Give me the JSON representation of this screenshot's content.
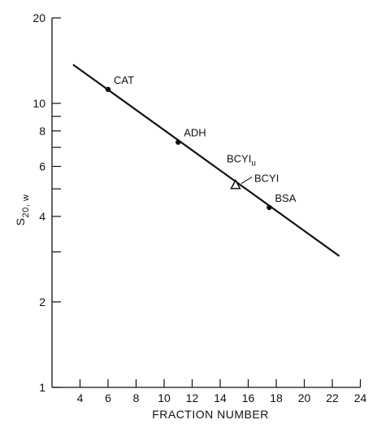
{
  "chart_data": {
    "type": "scatter",
    "xlabel": "FRACTION NUMBER",
    "ylabel": "S20, w",
    "ylabel_parts": {
      "main": "S",
      "sub": "20, w"
    },
    "yscale": "log",
    "xlim": [
      2,
      24
    ],
    "ylim": [
      1,
      20
    ],
    "x_ticks": [
      4,
      6,
      8,
      10,
      12,
      14,
      16,
      18,
      20,
      22,
      24
    ],
    "y_tick_labels": [
      1,
      2,
      4,
      6,
      8,
      10,
      20
    ],
    "y_minor_ticks": [
      3,
      5,
      7,
      9
    ],
    "grid": false,
    "points": [
      {
        "label": "CAT",
        "x": 6.0,
        "y": 11.2,
        "marker": "dot"
      },
      {
        "label": "ADH",
        "x": 11.0,
        "y": 7.3,
        "marker": "dot"
      },
      {
        "label": "BCYI",
        "x": 15.1,
        "y": 5.15,
        "marker": "triangle"
      },
      {
        "label": "BSA",
        "x": 17.5,
        "y": 4.3,
        "marker": "dot"
      }
    ],
    "annotations": [
      {
        "text": "BCYI",
        "subscript": "u",
        "x": 15.1,
        "y": 5.15
      }
    ],
    "fit_line": {
      "x": [
        3.5,
        22.5
      ],
      "y": [
        13.7,
        2.9
      ]
    }
  }
}
